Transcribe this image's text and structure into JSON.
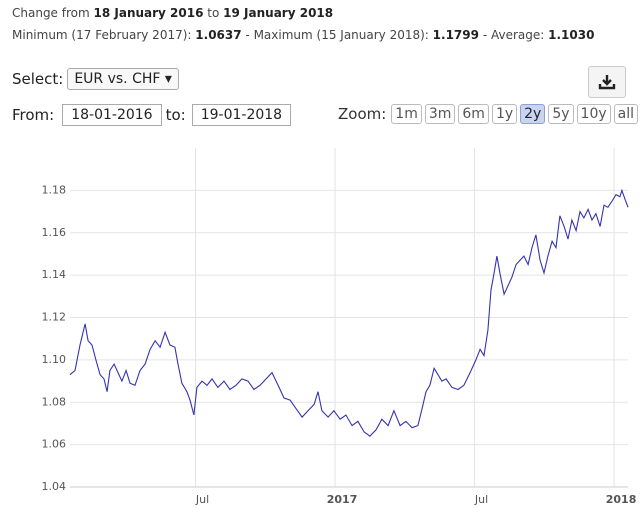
{
  "header": {
    "change_from": "Change from",
    "start": "18 January 2016",
    "to": "to",
    "end": "19 January 2018",
    "min_label": "Minimum (17 February 2017):",
    "min": "1.0637",
    "max_label": "- Maximum (15 January 2018):",
    "max": "1.1799",
    "avg_label": "- Average:",
    "avg": "1.1030"
  },
  "controls": {
    "select_label": "Select:",
    "select_value": "EUR vs. CHF",
    "from_label": "From:",
    "from_value": "18-01-2016",
    "to_label": "to:",
    "to_value": "19-01-2018",
    "zoom_label": "Zoom:",
    "zoom_buttons": [
      "1m",
      "3m",
      "6m",
      "1y",
      "2y",
      "5y",
      "10y",
      "all"
    ],
    "zoom_active": 4
  },
  "chart_data": {
    "type": "line",
    "color": "#3434b0",
    "grid": true,
    "xlim": [
      2016.05,
      2018.05
    ],
    "xticks": [
      {
        "value": 2016.5,
        "label": "Jul"
      },
      {
        "value": 2017,
        "label": "2017"
      },
      {
        "value": 2017.5,
        "label": "Jul"
      },
      {
        "value": 2018,
        "label": "2018"
      }
    ],
    "ylim": [
      1.04,
      1.2
    ],
    "yticks": [
      1.04,
      1.06,
      1.08,
      {
        "value": 1.1,
        "label": "1.10"
      },
      1.12,
      1.14,
      1.16,
      1.18
    ],
    "x": [
      2016.05,
      2016.068,
      2016.086,
      2016.104,
      2016.115,
      2016.129,
      2016.143,
      2016.158,
      2016.172,
      2016.183,
      2016.193,
      2016.208,
      2016.222,
      2016.236,
      2016.251,
      2016.265,
      2016.283,
      2016.301,
      2016.319,
      2016.337,
      2016.355,
      2016.373,
      2016.391,
      2016.408,
      2016.426,
      2016.437,
      2016.451,
      2016.469,
      2016.48,
      2016.494,
      2016.505,
      2016.523,
      2016.541,
      2016.559,
      2016.58,
      2016.602,
      2016.623,
      2016.645,
      2016.666,
      2016.688,
      2016.709,
      2016.731,
      2016.753,
      2016.774,
      2016.796,
      2016.817,
      2016.839,
      2016.86,
      2016.882,
      2016.903,
      2016.925,
      2016.939,
      2016.953,
      2016.975,
      2016.996,
      2017.018,
      2017.039,
      2017.061,
      2017.082,
      2017.104,
      2017.125,
      2017.147,
      2017.168,
      2017.19,
      2017.211,
      2017.233,
      2017.254,
      2017.276,
      2017.297,
      2017.312,
      2017.326,
      2017.34,
      2017.355,
      2017.369,
      2017.383,
      2017.398,
      2017.419,
      2017.441,
      2017.462,
      2017.484,
      2017.505,
      2017.52,
      2017.534,
      2017.548,
      2017.559,
      2017.57,
      2017.58,
      2017.591,
      2017.606,
      2017.62,
      2017.634,
      2017.649,
      2017.663,
      2017.677,
      2017.692,
      2017.706,
      2017.72,
      2017.735,
      2017.749,
      2017.763,
      2017.778,
      2017.792,
      2017.806,
      2017.821,
      2017.835,
      2017.849,
      2017.864,
      2017.878,
      2017.892,
      2017.907,
      2017.921,
      2017.935,
      2017.95,
      2017.964,
      2017.978,
      2017.993,
      2018.007,
      2018.021,
      2018.028,
      2018.039,
      2018.05
    ],
    "values": [
      1.093,
      1.095,
      1.107,
      1.117,
      1.109,
      1.107,
      1.1,
      1.093,
      1.091,
      1.085,
      1.095,
      1.098,
      1.094,
      1.09,
      1.095,
      1.089,
      1.088,
      1.095,
      1.098,
      1.105,
      1.109,
      1.106,
      1.113,
      1.107,
      1.106,
      1.098,
      1.089,
      1.085,
      1.081,
      1.074,
      1.087,
      1.09,
      1.088,
      1.091,
      1.087,
      1.09,
      1.086,
      1.088,
      1.091,
      1.09,
      1.086,
      1.088,
      1.091,
      1.094,
      1.088,
      1.082,
      1.081,
      1.077,
      1.073,
      1.076,
      1.079,
      1.085,
      1.076,
      1.073,
      1.076,
      1.072,
      1.074,
      1.069,
      1.071,
      1.066,
      1.064,
      1.067,
      1.072,
      1.069,
      1.076,
      1.069,
      1.071,
      1.068,
      1.069,
      1.077,
      1.085,
      1.088,
      1.096,
      1.093,
      1.09,
      1.091,
      1.087,
      1.086,
      1.088,
      1.094,
      1.1,
      1.105,
      1.102,
      1.114,
      1.133,
      1.141,
      1.149,
      1.141,
      1.131,
      1.135,
      1.139,
      1.145,
      1.147,
      1.149,
      1.145,
      1.153,
      1.159,
      1.147,
      1.141,
      1.149,
      1.156,
      1.153,
      1.168,
      1.163,
      1.157,
      1.166,
      1.161,
      1.17,
      1.167,
      1.171,
      1.166,
      1.169,
      1.163,
      1.173,
      1.172,
      1.175,
      1.178,
      1.177,
      1.18,
      1.176,
      1.172
    ]
  }
}
